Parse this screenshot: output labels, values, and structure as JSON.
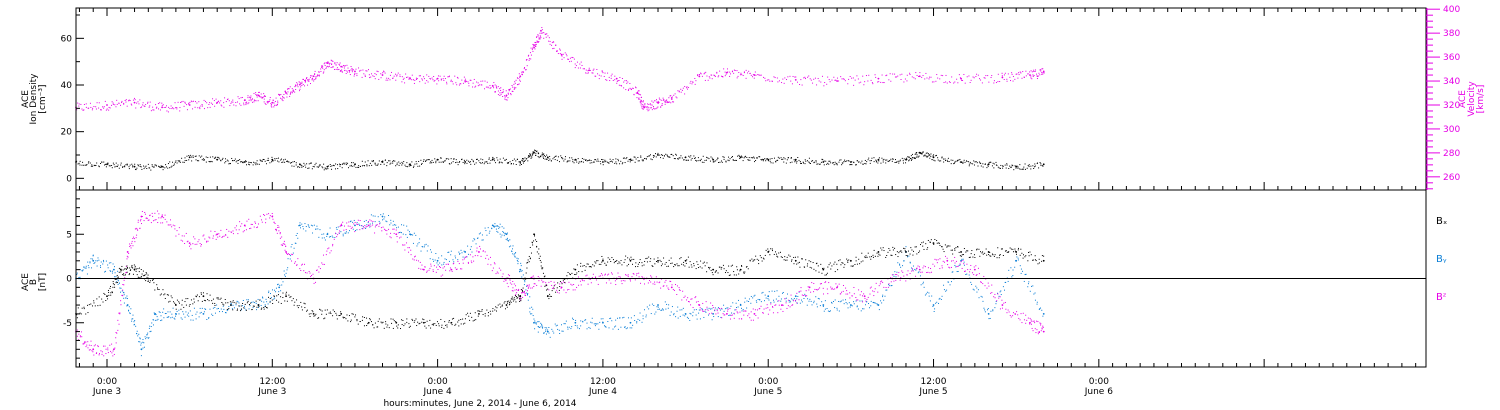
{
  "colors": {
    "axis": "#000000",
    "density": "#000000",
    "velocity": "#e600e6",
    "bx": "#000000",
    "by": "#0a7ed6",
    "bz": "#e600e6"
  },
  "x_axis": {
    "start": "2014-06-02 21:45",
    "end": "2014-06-06 23:45",
    "ticks": [
      {
        "t": "2014-06-03 00:00",
        "line1": "0:00",
        "line2": "June 3"
      },
      {
        "t": "2014-06-03 12:00",
        "line1": "12:00",
        "line2": "June 3"
      },
      {
        "t": "2014-06-04 00:00",
        "line1": "0:00",
        "line2": "June 4"
      },
      {
        "t": "2014-06-04 12:00",
        "line1": "12:00",
        "line2": "June 4"
      },
      {
        "t": "2014-06-05 00:00",
        "line1": "0:00",
        "line2": "June 5"
      },
      {
        "t": "2014-06-05 12:00",
        "line1": "12:00",
        "line2": "June 5"
      },
      {
        "t": "2014-06-06 00:00",
        "line1": "0:00",
        "line2": "June 6"
      }
    ],
    "xlabel": "hours:minutes, June  2, 2014 - June  6, 2014"
  },
  "top_panel": {
    "left_label": {
      "line1": "ACE",
      "line2": "Ion Density",
      "line3": "[cm⁻³]"
    },
    "right_label": {
      "line1": "ACE",
      "line2": "Velocity",
      "line3": "[km/s]"
    },
    "left_ylim": [
      -5,
      73
    ],
    "left_ticks": [
      "0",
      "20",
      "40",
      "60"
    ],
    "right_ylim": [
      249,
      401
    ],
    "right_ticks": [
      "260",
      "280",
      "300",
      "320",
      "340",
      "360",
      "380",
      "400"
    ]
  },
  "bottom_panel": {
    "left_label": {
      "line1": "ACE",
      "line2": "B",
      "line3": "[nT]"
    },
    "ylim": [
      -10,
      10
    ],
    "ticks": [
      "-5",
      "0",
      "5"
    ],
    "legend": [
      "Bₓ",
      "Bᵧ",
      "Bᶻ"
    ]
  },
  "chart_data": [
    {
      "type": "scatter",
      "title": "",
      "xlabel": "hours:minutes, June  2, 2014 - June  6, 2014",
      "series": [
        {
          "name": "Ion Density",
          "axis": "left",
          "x": [
            "2014-06-02 21:45",
            "2014-06-03 00:00",
            "2014-06-03 02:00",
            "2014-06-03 04:00",
            "2014-06-03 06:00",
            "2014-06-03 08:00",
            "2014-06-03 10:00",
            "2014-06-03 12:00",
            "2014-06-03 14:00",
            "2014-06-03 16:00",
            "2014-06-03 18:00",
            "2014-06-03 20:00",
            "2014-06-03 22:00",
            "2014-06-04 00:00",
            "2014-06-04 02:00",
            "2014-06-04 04:00",
            "2014-06-04 06:00",
            "2014-06-04 07:00",
            "2014-06-04 08:00",
            "2014-06-04 10:00",
            "2014-06-04 12:00",
            "2014-06-04 14:00",
            "2014-06-04 16:00",
            "2014-06-04 18:00",
            "2014-06-04 20:00",
            "2014-06-04 22:00",
            "2014-06-05 00:00",
            "2014-06-05 02:00",
            "2014-06-05 04:00",
            "2014-06-05 06:00",
            "2014-06-05 08:00",
            "2014-06-05 10:00",
            "2014-06-05 11:00",
            "2014-06-05 12:00",
            "2014-06-05 14:00",
            "2014-06-05 16:00",
            "2014-06-05 18:00",
            "2014-06-05 20:00"
          ],
          "y": [
            7,
            6,
            5,
            5,
            9,
            8,
            7,
            8,
            6,
            5,
            6,
            7,
            6,
            8,
            7,
            8,
            7,
            11,
            9,
            8,
            7,
            8,
            10,
            9,
            8,
            9,
            8,
            8,
            7,
            7,
            8,
            8,
            11,
            9,
            7,
            6,
            5,
            6
          ]
        },
        {
          "name": "Velocity",
          "axis": "right",
          "x": [
            "2014-06-02 21:45",
            "2014-06-03 00:00",
            "2014-06-03 02:00",
            "2014-06-03 04:00",
            "2014-06-03 06:00",
            "2014-06-03 08:00",
            "2014-06-03 10:00",
            "2014-06-03 11:00",
            "2014-06-03 12:00",
            "2014-06-03 13:00",
            "2014-06-03 14:00",
            "2014-06-03 15:00",
            "2014-06-03 16:00",
            "2014-06-03 17:00",
            "2014-06-03 18:00",
            "2014-06-03 20:00",
            "2014-06-03 22:00",
            "2014-06-04 00:00",
            "2014-06-04 02:00",
            "2014-06-04 04:00",
            "2014-06-04 05:00",
            "2014-06-04 06:00",
            "2014-06-04 07:00",
            "2014-06-04 07:30",
            "2014-06-04 09:00",
            "2014-06-04 11:00",
            "2014-06-04 13:00",
            "2014-06-04 14:30",
            "2014-06-04 15:00",
            "2014-06-04 16:00",
            "2014-06-04 17:00",
            "2014-06-04 19:00",
            "2014-06-04 21:00",
            "2014-06-04 23:00",
            "2014-06-05 02:00",
            "2014-06-05 05:00",
            "2014-06-05 08:00",
            "2014-06-05 11:00",
            "2014-06-05 14:00",
            "2014-06-05 17:00",
            "2014-06-05 19:00",
            "2014-06-05 20:00"
          ],
          "y": [
            318,
            320,
            322,
            318,
            320,
            322,
            324,
            328,
            322,
            330,
            337,
            344,
            355,
            352,
            348,
            345,
            342,
            342,
            340,
            336,
            328,
            344,
            370,
            382,
            362,
            349,
            342,
            330,
            318,
            322,
            325,
            344,
            347,
            345,
            341,
            340,
            342,
            344,
            342,
            343,
            345,
            348
          ]
        }
      ],
      "left_ylim": [
        -5,
        73
      ],
      "right_ylim": [
        249,
        401
      ],
      "grid": false
    },
    {
      "type": "scatter",
      "title": "",
      "xlabel": "hours:minutes, June  2, 2014 - June  6, 2014",
      "ylim": [
        -10,
        10
      ],
      "series": [
        {
          "name": "Bₓ",
          "x": [
            "2014-06-02 21:45",
            "2014-06-03 00:00",
            "2014-06-03 01:00",
            "2014-06-03 02:00",
            "2014-06-03 03:00",
            "2014-06-03 05:00",
            "2014-06-03 07:00",
            "2014-06-03 09:00",
            "2014-06-03 11:00",
            "2014-06-03 13:00",
            "2014-06-03 15:00",
            "2014-06-03 17:00",
            "2014-06-03 19:00",
            "2014-06-03 21:00",
            "2014-06-03 23:00",
            "2014-06-04 01:00",
            "2014-06-04 03:00",
            "2014-06-04 05:00",
            "2014-06-04 06:00",
            "2014-06-04 07:00",
            "2014-06-04 08:00",
            "2014-06-04 10:00",
            "2014-06-04 12:00",
            "2014-06-04 14:00",
            "2014-06-04 16:00",
            "2014-06-04 18:00",
            "2014-06-04 20:00",
            "2014-06-04 22:00",
            "2014-06-05 00:00",
            "2014-06-05 02:00",
            "2014-06-05 04:00",
            "2014-06-05 06:00",
            "2014-06-05 08:00",
            "2014-06-05 10:00",
            "2014-06-05 12:00",
            "2014-06-05 14:00",
            "2014-06-05 16:00",
            "2014-06-05 18:00",
            "2014-06-05 20:00"
          ],
          "y": [
            -4,
            -2,
            1,
            1,
            0,
            -3,
            -2,
            -3,
            -3,
            -2,
            -4,
            -4,
            -5,
            -5,
            -5,
            -5,
            -4,
            -3,
            -2,
            5,
            -2,
            1,
            2,
            2,
            2,
            2,
            1,
            1,
            3,
            2,
            1,
            2,
            3,
            3,
            4,
            3,
            3,
            3,
            2
          ]
        },
        {
          "name": "Bᵧ",
          "x": [
            "2014-06-02 21:45",
            "2014-06-02 23:00",
            "2014-06-03 00:30",
            "2014-06-03 01:30",
            "2014-06-03 02:30",
            "2014-06-03 03:30",
            "2014-06-03 05:00",
            "2014-06-03 07:00",
            "2014-06-03 09:00",
            "2014-06-03 11:00",
            "2014-06-03 12:30",
            "2014-06-03 14:00",
            "2014-06-03 16:00",
            "2014-06-03 18:00",
            "2014-06-03 20:00",
            "2014-06-03 22:00",
            "2014-06-04 00:00",
            "2014-06-04 02:00",
            "2014-06-04 04:00",
            "2014-06-04 05:00",
            "2014-06-04 06:00",
            "2014-06-04 07:00",
            "2014-06-04 08:00",
            "2014-06-04 10:00",
            "2014-06-04 12:00",
            "2014-06-04 14:00",
            "2014-06-04 16:00",
            "2014-06-04 18:00",
            "2014-06-04 20:00",
            "2014-06-04 22:00",
            "2014-06-05 00:00",
            "2014-06-05 02:00",
            "2014-06-05 04:00",
            "2014-06-05 06:00",
            "2014-06-05 08:00",
            "2014-06-05 10:00",
            "2014-06-05 12:00",
            "2014-06-05 14:00",
            "2014-06-05 16:00",
            "2014-06-05 18:00",
            "2014-06-05 20:00"
          ],
          "y": [
            0,
            2,
            1,
            -3,
            -8,
            -4,
            -4,
            -4,
            -3,
            -3,
            -1,
            6,
            5,
            6,
            7,
            5,
            2,
            3,
            6,
            5,
            1,
            -5,
            -6,
            -5,
            -5,
            -5,
            -3,
            -4,
            -4,
            -3,
            -2,
            -2,
            -3,
            -3,
            -3,
            3,
            -3,
            2,
            -4,
            2,
            -4
          ]
        },
        {
          "name": "Bᶻ",
          "x": [
            "2014-06-02 21:45",
            "2014-06-02 23:00",
            "2014-06-03 00:30",
            "2014-06-03 01:30",
            "2014-06-03 02:30",
            "2014-06-03 04:00",
            "2014-06-03 06:00",
            "2014-06-03 08:00",
            "2014-06-03 10:00",
            "2014-06-03 12:00",
            "2014-06-03 13:00",
            "2014-06-03 15:00",
            "2014-06-03 17:00",
            "2014-06-03 19:00",
            "2014-06-03 21:00",
            "2014-06-03 23:00",
            "2014-06-04 01:00",
            "2014-06-04 03:00",
            "2014-06-04 05:00",
            "2014-06-04 06:00",
            "2014-06-04 07:00",
            "2014-06-04 09:00",
            "2014-06-04 11:00",
            "2014-06-04 13:00",
            "2014-06-04 15:00",
            "2014-06-04 17:00",
            "2014-06-04 19:00",
            "2014-06-04 21:00",
            "2014-06-04 23:00",
            "2014-06-05 01:00",
            "2014-06-05 03:00",
            "2014-06-05 05:00",
            "2014-06-05 07:00",
            "2014-06-05 09:00",
            "2014-06-05 11:00",
            "2014-06-05 13:00",
            "2014-06-05 15:00",
            "2014-06-05 17:00",
            "2014-06-05 19:00",
            "2014-06-05 20:00"
          ],
          "y": [
            -6,
            -8,
            -8,
            3,
            7,
            7,
            4,
            5,
            6,
            7,
            3,
            0,
            6,
            6,
            5,
            1,
            1,
            3,
            0,
            -2,
            0,
            -1,
            0,
            0,
            0,
            -1,
            -3,
            -4,
            -4,
            -3,
            -1,
            -1,
            -2,
            0,
            1,
            2,
            1,
            -3,
            -5,
            -6
          ]
        }
      ],
      "grid": false
    }
  ]
}
